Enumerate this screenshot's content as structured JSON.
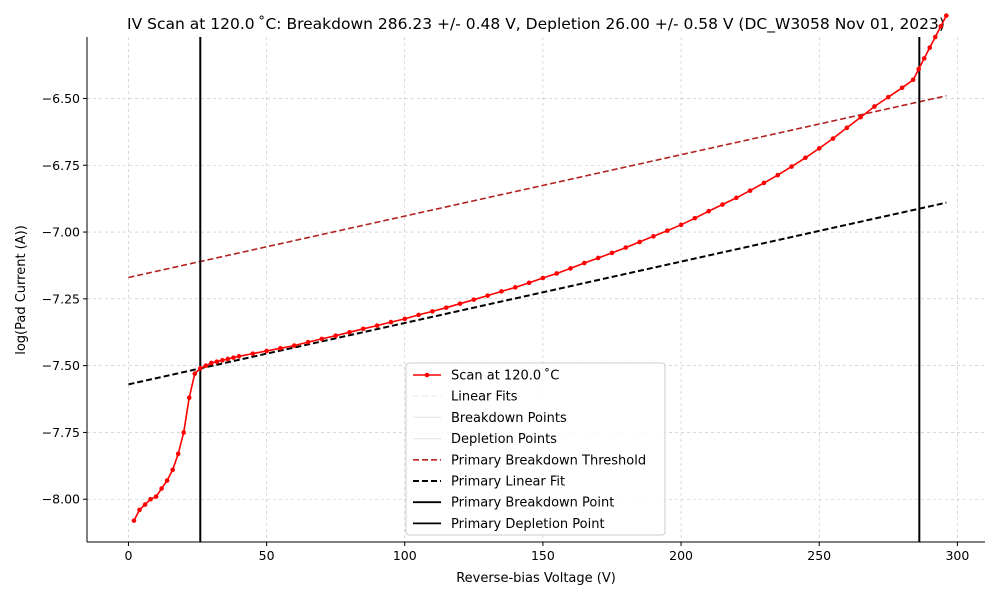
{
  "chart_data": {
    "type": "line",
    "title": "IV Scan at 120.0$^\\circ$C: Breakdown 286.23 +/- 0.48 V, Depletion 26.00 +/- 0.58 V (DC_W3058 Nov 01, 2023)",
    "title_display": "IV Scan at 120.0 ˚C: Breakdown 286.23 +/- 0.48 V, Depletion 26.00 +/- 0.58 V (DC_W3058 Nov 01, 2023)",
    "xlabel": "Reverse-bias Voltage (V)",
    "ylabel": "log(Pad Current (A))",
    "xlim": [
      -15,
      310
    ],
    "ylim": [
      -8.16,
      -6.27
    ],
    "xticks": [
      0,
      50,
      100,
      150,
      200,
      250,
      300
    ],
    "xtick_labels": [
      "0",
      "50",
      "100",
      "150",
      "200",
      "250",
      "300"
    ],
    "yticks": [
      -8.0,
      -7.75,
      -7.5,
      -7.25,
      -7.0,
      -6.75,
      -6.5
    ],
    "ytick_labels": [
      "−8.00",
      "−7.75",
      "−7.50",
      "−7.25",
      "−7.00",
      "−6.75",
      "−6.50"
    ],
    "grid": true,
    "legend_placement": "lower-center",
    "colors": {
      "scan": "#ff0000",
      "threshold": "#b22222",
      "fit": "#000000",
      "breakdown": "#000000",
      "depletion": "#000000",
      "faded": "#e8e8e8"
    },
    "series": [
      {
        "name": "Scan at 120.0 ˚C",
        "style": "line-marker",
        "x": [
          2,
          4,
          6,
          8,
          10,
          12,
          14,
          16,
          18,
          20,
          22,
          24,
          26,
          28,
          30,
          32,
          34,
          36,
          38,
          40,
          45,
          50,
          55,
          60,
          65,
          70,
          75,
          80,
          85,
          90,
          95,
          100,
          105,
          110,
          115,
          120,
          125,
          130,
          135,
          140,
          145,
          150,
          155,
          160,
          165,
          170,
          175,
          180,
          185,
          190,
          195,
          200,
          205,
          210,
          215,
          220,
          225,
          230,
          235,
          240,
          245,
          250,
          255,
          260,
          265,
          270,
          275,
          280,
          284,
          286,
          288,
          290,
          292,
          294,
          296
        ],
        "y": [
          -8.08,
          -8.04,
          -8.02,
          -8.0,
          -7.99,
          -7.96,
          -7.93,
          -7.89,
          -7.83,
          -7.75,
          -7.62,
          -7.53,
          -7.51,
          -7.5,
          -7.49,
          -7.485,
          -7.48,
          -7.475,
          -7.47,
          -7.465,
          -7.455,
          -7.445,
          -7.435,
          -7.425,
          -7.412,
          -7.4,
          -7.388,
          -7.375,
          -7.362,
          -7.35,
          -7.337,
          -7.325,
          -7.31,
          -7.297,
          -7.283,
          -7.268,
          -7.253,
          -7.238,
          -7.222,
          -7.207,
          -7.19,
          -7.172,
          -7.155,
          -7.136,
          -7.116,
          -7.097,
          -7.078,
          -7.058,
          -7.037,
          -7.016,
          -6.995,
          -6.973,
          -6.948,
          -6.922,
          -6.897,
          -6.872,
          -6.845,
          -6.816,
          -6.787,
          -6.755,
          -6.722,
          -6.687,
          -6.65,
          -6.61,
          -6.57,
          -6.53,
          -6.495,
          -6.46,
          -6.43,
          -6.39,
          -6.35,
          -6.31,
          -6.27,
          -6.23,
          -6.19
        ]
      },
      {
        "name": "Linear Fits",
        "style": "dashed-faded"
      },
      {
        "name": "Breakdown Points",
        "style": "solid-faded"
      },
      {
        "name": "Depletion Points",
        "style": "solid-faded"
      },
      {
        "name": "Primary Breakdown Threshold",
        "style": "dashed",
        "x": [
          0,
          296
        ],
        "y": [
          -7.17,
          -6.49
        ]
      },
      {
        "name": "Primary Linear Fit",
        "style": "dashed",
        "x": [
          0,
          296
        ],
        "y": [
          -7.57,
          -6.89
        ]
      },
      {
        "name": "Primary Breakdown Point",
        "style": "vline",
        "x_value": 286.23
      },
      {
        "name": "Primary Depletion Point",
        "style": "vline",
        "x_value": 26.0
      }
    ]
  }
}
